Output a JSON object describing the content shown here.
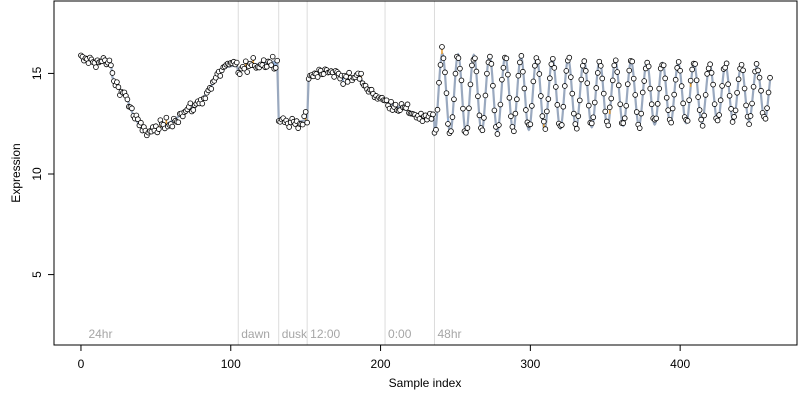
{
  "chart_data": {
    "type": "scatter",
    "xlabel": "Sample index",
    "ylabel": "Expression",
    "xlim": [
      -18,
      478
    ],
    "ylim": [
      1.5,
      18.6
    ],
    "x_ticks": [
      0,
      100,
      200,
      300,
      400
    ],
    "y_ticks": [
      5,
      10,
      15
    ],
    "grid": false,
    "legend": "none",
    "colors": {
      "fit_line": "#9aa9bf",
      "residual_positive": "#e8a13a",
      "residual_negative": "#8fb0dc",
      "point_fill_default": "#ffffff",
      "point_fill_high": "#f4c98a",
      "point_fill_low": "#bcd3ee",
      "point_edge": "#000000",
      "separator": "#dcdcdc",
      "annotation_text": "#a6a6a6"
    },
    "separators": [
      {
        "x": 105,
        "label": "dawn"
      },
      {
        "x": 132,
        "label": "dusk"
      },
      {
        "x": 151,
        "label": "12:00"
      },
      {
        "x": 203,
        "label": "0:00"
      },
      {
        "x": 236,
        "label": "48hr"
      }
    ],
    "start_label": {
      "x": 3,
      "label": "24hr"
    },
    "series": [
      {
        "x": [
          0,
          10,
          20,
          21,
          25,
          30,
          35,
          40,
          45,
          50,
          55,
          60,
          70,
          80,
          90,
          95,
          104,
          105,
          110,
          120,
          131,
          132,
          140,
          151,
          152,
          160,
          170,
          180,
          185,
          190,
          200,
          210,
          220,
          225,
          230,
          235
        ],
        "y": [
          15.7,
          15.6,
          15.5,
          14.8,
          14.3,
          13.9,
          12.9,
          12.3,
          12.1,
          12.2,
          12.4,
          12.6,
          13.1,
          13.6,
          14.7,
          15.3,
          15.4,
          15.1,
          15.3,
          15.5,
          15.6,
          12.8,
          12.5,
          12.7,
          14.7,
          15.1,
          15.0,
          14.7,
          14.9,
          14.4,
          13.7,
          13.4,
          13.1,
          12.9,
          12.7,
          12.8
        ]
      }
    ],
    "oscillation": {
      "x_start": 236,
      "x_end": 460,
      "center": 14.0,
      "amplitude_start": 2.0,
      "amplitude_end": 1.3,
      "period": 10.5
    }
  }
}
